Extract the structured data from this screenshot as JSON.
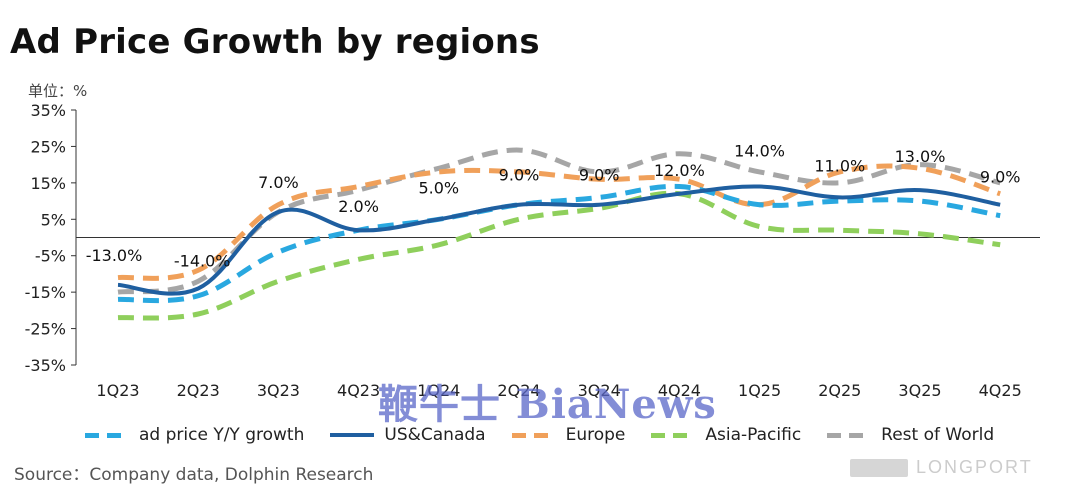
{
  "title": "Ad Price Growth by regions",
  "unit_label": "单位：%",
  "source": "Source：Company data, Dolphin Research",
  "watermark": "LONGPORT",
  "overlay_brand": "鞭牛士 BiaNews",
  "colors": {
    "ad_price": "#29a8e0",
    "us_canada": "#1f5fa0",
    "europe": "#f0a05a",
    "asia_pacific": "#8fcf5c",
    "rest_of_world": "#a6a6a6",
    "axis": "#333333"
  },
  "chart_data": {
    "type": "line",
    "title": "Ad Price Growth by regions",
    "ylabel": "单位：%",
    "xlabel": "",
    "ylim": [
      -35,
      35
    ],
    "yticks": [
      "35%",
      "25%",
      "15%",
      "5%",
      "-5%",
      "-15%",
      "-25%",
      "-35%"
    ],
    "categories": [
      "1Q23",
      "2Q23",
      "3Q23",
      "4Q23",
      "1Q24",
      "2Q24",
      "3Q24",
      "4Q24",
      "1Q25",
      "2Q25",
      "3Q25",
      "4Q25"
    ],
    "series": [
      {
        "name": "ad price Y/Y growth",
        "style": "dashed",
        "color": "#29a8e0",
        "values": [
          -17,
          -16,
          -4,
          2,
          5,
          9,
          11,
          14,
          9,
          10,
          10,
          6
        ]
      },
      {
        "name": "US&Canada",
        "style": "solid",
        "color": "#1f5fa0",
        "values": [
          -13,
          -14,
          7,
          2,
          5,
          9,
          9,
          12,
          14,
          11,
          13,
          9
        ]
      },
      {
        "name": "Europe",
        "style": "dashed",
        "color": "#f0a05a",
        "values": [
          -11,
          -9,
          9,
          14,
          18,
          18,
          16,
          16,
          9,
          18,
          19,
          12
        ]
      },
      {
        "name": "Asia-Pacific",
        "style": "dashed",
        "color": "#8fcf5c",
        "values": [
          -22,
          -21,
          -12,
          -6,
          -2,
          5,
          8,
          12,
          3,
          2,
          1,
          -2
        ]
      },
      {
        "name": "Rest of World",
        "style": "dashed",
        "color": "#a6a6a6",
        "values": [
          -15,
          -12,
          7,
          13,
          19,
          24,
          18,
          23,
          18,
          15,
          20,
          15
        ]
      }
    ],
    "data_labels": [
      {
        "text": "-13.0%",
        "category": "1Q23",
        "value": -13
      },
      {
        "text": "-14.0%",
        "category": "2Q23",
        "value": -14
      },
      {
        "text": "7.0%",
        "category": "3Q23",
        "value": 7
      },
      {
        "text": "2.0%",
        "category": "4Q23",
        "value": 2
      },
      {
        "text": "5.0%",
        "category": "1Q24",
        "value": 5
      },
      {
        "text": "9.0%",
        "category": "2Q24",
        "value": 9
      },
      {
        "text": "9.0%",
        "category": "3Q24",
        "value": 9
      },
      {
        "text": "12.0%",
        "category": "4Q24",
        "value": 12
      },
      {
        "text": "14.0%",
        "category": "1Q25",
        "value": 14
      },
      {
        "text": "11.0%",
        "category": "2Q25",
        "value": 11
      },
      {
        "text": "13.0%",
        "category": "3Q25",
        "value": 13
      },
      {
        "text": "9.0%",
        "category": "4Q25",
        "value": 9
      }
    ],
    "legend_position": "bottom",
    "grid": false
  }
}
